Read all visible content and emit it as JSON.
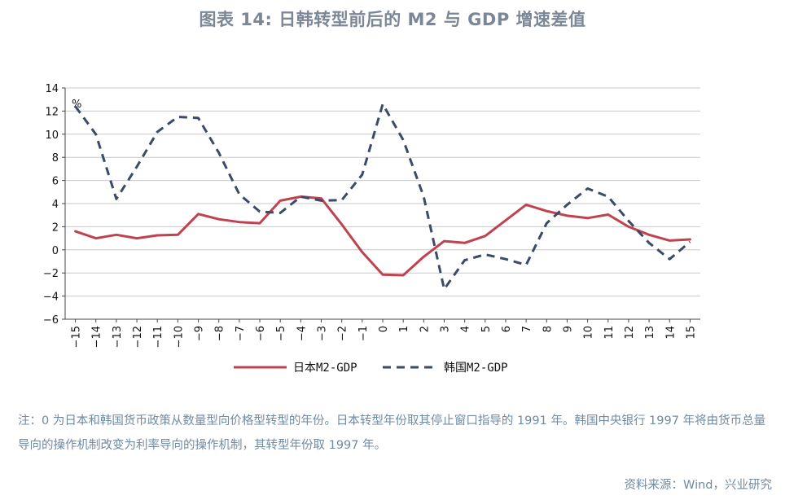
{
  "title": "图表 14: 日韩转型前后的 M2 与 GDP 增速差值",
  "note": "注：0 为日本和韩国货币政策从数量型向价格型转型的年份。日本转型年份取其停止窗口指导的 1991 年。韩国中央银行 1997 年将由货币总量导向的操作机制改变为利率导向的操作机制，其转型年份取 1997 年。",
  "source": "资料来源：Wind，兴业研究",
  "chart_data": {
    "type": "line",
    "unit_label": "%",
    "x": [
      -15,
      -14,
      -13,
      -12,
      -11,
      -10,
      -9,
      -8,
      -7,
      -6,
      -5,
      -4,
      -3,
      -2,
      -1,
      0,
      1,
      2,
      3,
      4,
      5,
      6,
      7,
      8,
      9,
      10,
      11,
      12,
      13,
      14,
      15
    ],
    "x_tick_labels": [
      "−15",
      "−14",
      "−13",
      "−12",
      "−11",
      "−10",
      "−9",
      "−8",
      "−7",
      "−6",
      "−5",
      "−4",
      "−3",
      "−2",
      "−1",
      "0",
      "1",
      "2",
      "3",
      "4",
      "5",
      "6",
      "7",
      "8",
      "9",
      "10",
      "11",
      "12",
      "13",
      "14",
      "15"
    ],
    "y_ticks": [
      14,
      12,
      10,
      8,
      6,
      4,
      2,
      0,
      -2,
      -4,
      -6
    ],
    "y_tick_labels": [
      "14",
      "12",
      "10",
      "8",
      "6",
      "4",
      "2",
      "0",
      "−2",
      "−4",
      "−6"
    ],
    "ylim": [
      -6,
      14
    ],
    "grid": "horizontal",
    "legend_position": "bottom",
    "series": [
      {
        "name": "日本M2-GDP",
        "color": "#c0424f",
        "style": "solid",
        "values": [
          1.6,
          1.0,
          1.3,
          1.0,
          1.25,
          1.3,
          3.1,
          2.65,
          2.4,
          2.3,
          4.25,
          4.6,
          4.45,
          2.2,
          -0.2,
          -2.15,
          -2.2,
          -0.6,
          0.75,
          0.6,
          1.2,
          2.55,
          3.9,
          3.35,
          2.95,
          2.75,
          3.05,
          2.0,
          1.3,
          0.8,
          0.9
        ]
      },
      {
        "name": "韩国M2-GDP",
        "color": "#3a4a68",
        "style": "dashed",
        "values": [
          12.4,
          10.0,
          4.4,
          7.2,
          10.2,
          11.5,
          11.4,
          8.4,
          4.8,
          3.3,
          3.2,
          4.6,
          4.25,
          4.3,
          6.5,
          12.6,
          9.5,
          4.6,
          -3.4,
          -0.9,
          -0.4,
          -0.8,
          -1.3,
          2.3,
          3.9,
          5.3,
          4.6,
          2.5,
          0.6,
          -0.8,
          0.7
        ]
      }
    ]
  }
}
